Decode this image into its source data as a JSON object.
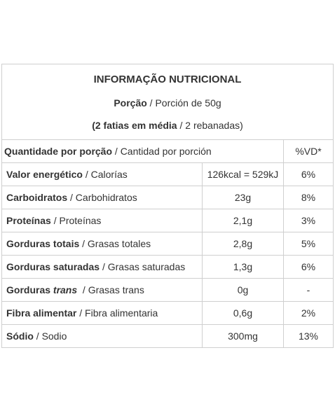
{
  "title": "INFORMAÇÃO NUTRICIONAL",
  "portion": {
    "bold": "Porção",
    "sep": " / ",
    "normal": "Porción de 50g"
  },
  "slices": {
    "bold": "(2 fatias em média",
    "sep": " / ",
    "normal": "2 rebanadas)"
  },
  "column_header": {
    "bold": "Quantidade por porção",
    "sep": " / ",
    "normal": "Cantidad por porción",
    "vd": "%VD*"
  },
  "rows": [
    {
      "bold": "Valor energético",
      "sep": " / ",
      "normal": "Calorías",
      "amount": "126kcal = 529kJ",
      "vd": "6%"
    },
    {
      "bold": "Carboidratos",
      "sep": " / ",
      "normal": "Carbohidratos",
      "amount": "23g",
      "vd": "8%"
    },
    {
      "bold": "Proteínas",
      "sep": " / ",
      "normal": "Proteínas",
      "amount": "2,1g",
      "vd": "3%"
    },
    {
      "bold": "Gorduras totais",
      "sep": " / ",
      "normal": "Grasas totales",
      "amount": "2,8g",
      "vd": "5%"
    },
    {
      "bold": "Gorduras saturadas",
      "sep": " / ",
      "normal": "Grasas saturadas",
      "amount": "1,3g",
      "vd": "6%"
    },
    {
      "bold": "Gorduras ",
      "italic": "trans",
      "sep": "  / ",
      "normal": "Grasas trans",
      "amount": "0g",
      "vd": "-"
    },
    {
      "bold": "Fibra alimentar",
      "sep": " / ",
      "normal": "Fibra alimentaria",
      "amount": "0,6g",
      "vd": "2%"
    },
    {
      "bold": "Sódio",
      "sep": " / ",
      "normal": "Sodio",
      "amount": "300mg",
      "vd": "13%"
    }
  ]
}
